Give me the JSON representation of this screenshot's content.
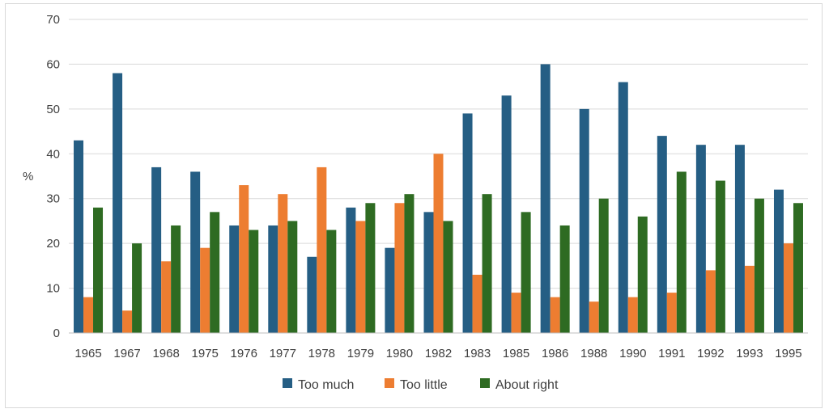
{
  "chart_data": {
    "type": "bar",
    "title": "",
    "xlabel": "",
    "ylabel": "%",
    "ylim": [
      0,
      70
    ],
    "yticks": [
      0,
      10,
      20,
      30,
      40,
      50,
      60,
      70
    ],
    "grid": true,
    "legend_position": "bottom",
    "categories": [
      "1965",
      "1967",
      "1968",
      "1975",
      "1976",
      "1977",
      "1978",
      "1979",
      "1980",
      "1982",
      "1983",
      "1985",
      "1986",
      "1988",
      "1990",
      "1991",
      "1992",
      "1993",
      "1995"
    ],
    "series": [
      {
        "name": "Too much",
        "color": "#255e84",
        "values": [
          43,
          58,
          37,
          36,
          24,
          24,
          17,
          28,
          19,
          27,
          49,
          53,
          60,
          50,
          56,
          44,
          42,
          42,
          32
        ]
      },
      {
        "name": "Too little",
        "color": "#ed7d31",
        "values": [
          8,
          5,
          16,
          19,
          33,
          31,
          37,
          25,
          29,
          40,
          13,
          9,
          8,
          7,
          8,
          9,
          14,
          15,
          20
        ]
      },
      {
        "name": "About right",
        "color": "#2e6b22",
        "values": [
          28,
          20,
          24,
          27,
          23,
          25,
          23,
          29,
          31,
          25,
          31,
          27,
          24,
          30,
          26,
          36,
          34,
          30,
          29
        ]
      }
    ]
  }
}
